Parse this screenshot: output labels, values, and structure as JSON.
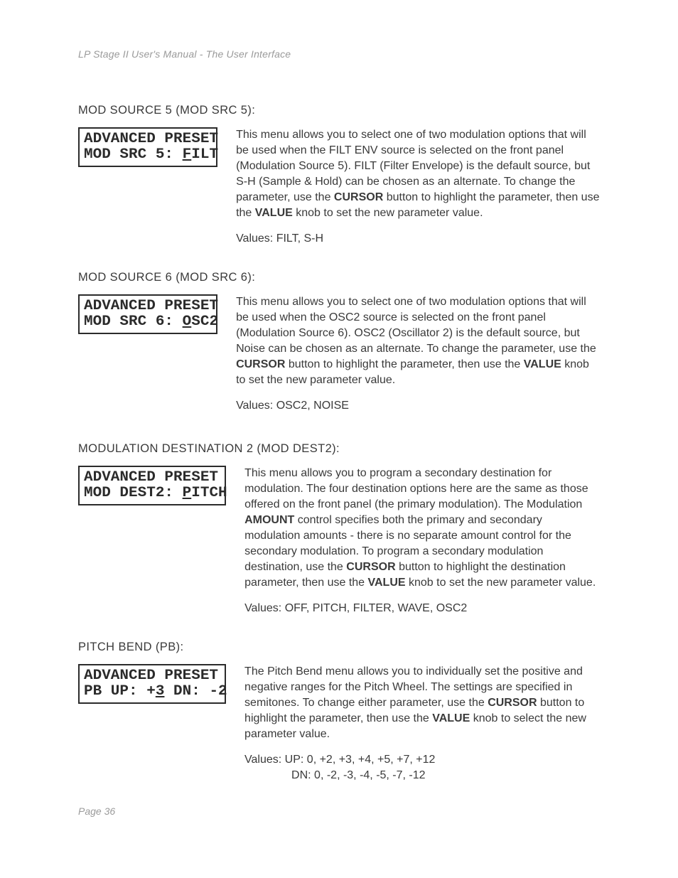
{
  "header": "LP Stage II User's Manual - The User Interface",
  "page_number_label": "Page 36",
  "sections": [
    {
      "title": "MOD SOURCE 5 (MOD SRC 5):",
      "lcd": {
        "line1": "ADVANCED PRESET",
        "line2_pre": "MOD SRC 5: ",
        "line2_ul": "F",
        "line2_post": "ILT"
      },
      "para_html": "This menu allows you to select one of two modulation options that will be used when the FILT ENV source is selected on the front panel (Modulation Source 5).  FILT (Filter Envelope) is the default source, but S-H (Sample & Hold) can be chosen as an alternate.  To change the parameter, use the <span class=\"b\">CURSOR</span> button to highlight the parameter, then use the <span class=\"b\">VALUE</span> knob to set the new parameter value.",
      "values": [
        "Values:   FILT, S-H"
      ]
    },
    {
      "title": "MOD SOURCE 6 (MOD SRC 6):",
      "lcd": {
        "line1": "ADVANCED PRESET",
        "line2_pre": "MOD SRC 6: ",
        "line2_ul": "O",
        "line2_post": "SC2"
      },
      "para_html": "This menu allows you to select one of two modulation options that will be used when the OSC2 source is selected on the front panel (Modulation Source 6). OSC2 (Oscillator 2) is the default source, but Noise can be chosen as an alternate.  To change the parameter, use the <span class=\"b\">CURSOR</span> button to highlight the parameter, then use the <span class=\"b\">VALUE</span> knob to set the new parameter value.",
      "values": [
        "Values:   OSC2, NOISE"
      ]
    },
    {
      "title": "MODULATION DESTINATION 2 (MOD DEST2):",
      "lcd": {
        "line1": "ADVANCED PRESET",
        "line2_pre": "MOD DEST2: ",
        "line2_ul": "P",
        "line2_post": "ITCH"
      },
      "para_html": "This menu allows you to program a secondary destination for modulation.  The four destination options here are the same as those offered on the front panel (the primary modulation).  The Modulation <span class=\"b\">AMOUNT</span> control specifies both the primary and secondary modulation amounts - there is no separate amount control for the secondary modulation.  To program a secondary modulation destination, use the <span class=\"b\">CURSOR</span> button to highlight the destination parameter, then use the <span class=\"b\">VALUE</span> knob to set the new parameter value.",
      "values": [
        "Values:   OFF, PITCH, FILTER, WAVE, OSC2"
      ]
    },
    {
      "title": "PITCH BEND (PB):",
      "lcd": {
        "line1": "ADVANCED PRESET",
        "line2_pre": "PB UP: +",
        "line2_ul": "3",
        "line2_post": " DN: -2"
      },
      "para_html": "The Pitch Bend menu allows you to individually set the positive and negative ranges for the Pitch Wheel.  The settings are specified in semitones.  To change either parameter, use the <span class=\"b\">CURSOR</span> button to highlight the parameter, then use the <span class=\"b\">VALUE</span> knob to select the new parameter value.",
      "values": [
        "Values:   UP:  0, +2, +3, +4, +5, +7, +12",
        "DN:  0, -2, -3, -4, -5, -7, -12"
      ]
    }
  ]
}
